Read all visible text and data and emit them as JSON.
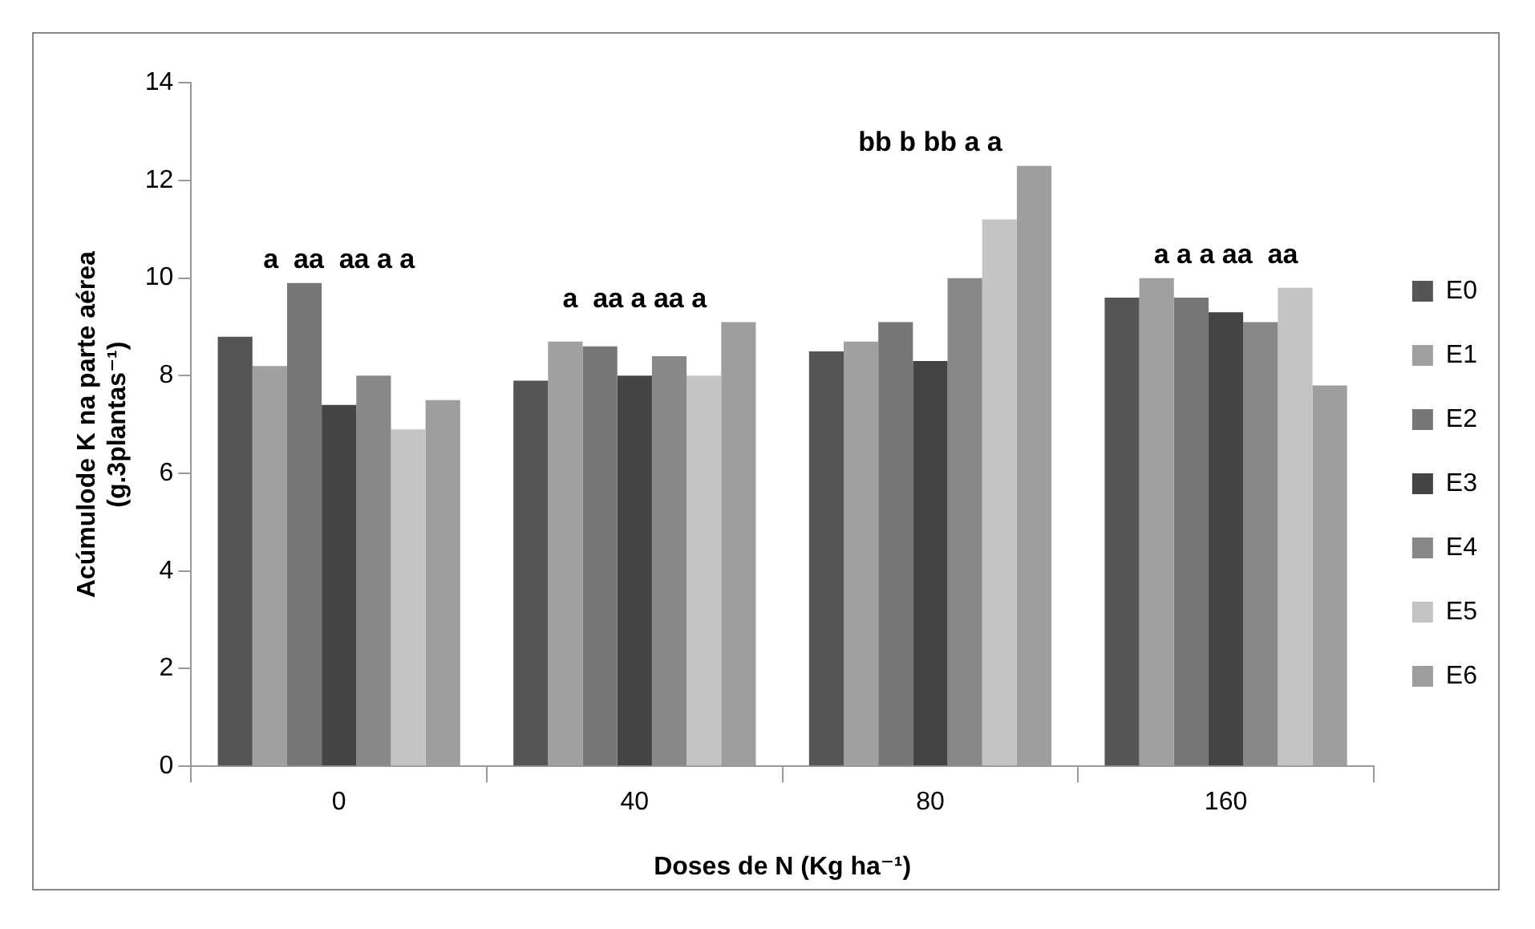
{
  "chart_data": {
    "type": "bar",
    "xlabel": "Doses de N (Kg ha⁻¹)",
    "ylabel": "Acúmulode K na parte aérea\n(g.3plantas⁻¹)",
    "categories": [
      "0",
      "40",
      "80",
      "160"
    ],
    "series": [
      {
        "name": "E0",
        "color": "#555555",
        "values": [
          8.8,
          7.9,
          8.5,
          9.6
        ]
      },
      {
        "name": "E1",
        "color": "#a0a0a0",
        "values": [
          8.2,
          8.7,
          8.7,
          10.0
        ]
      },
      {
        "name": "E2",
        "color": "#777777",
        "values": [
          9.9,
          8.6,
          9.1,
          9.6
        ]
      },
      {
        "name": "E3",
        "color": "#444444",
        "values": [
          7.4,
          8.0,
          8.3,
          9.3
        ]
      },
      {
        "name": "E4",
        "color": "#888888",
        "values": [
          8.0,
          8.4,
          10.0,
          9.1
        ]
      },
      {
        "name": "E5",
        "color": "#c4c4c4",
        "values": [
          6.9,
          8.0,
          11.2,
          9.8
        ]
      },
      {
        "name": "E6",
        "color": "#9e9e9e",
        "values": [
          7.5,
          9.1,
          12.3,
          7.8
        ]
      }
    ],
    "ylim": [
      0,
      14
    ],
    "yticks": [
      0,
      2,
      4,
      6,
      8,
      10,
      12,
      14
    ],
    "grid": false,
    "legend": "right",
    "annotations": [
      "a  aa  aa a a",
      "a  aa a aa a",
      "bb b bb a a",
      "a a a aa  aa"
    ]
  }
}
